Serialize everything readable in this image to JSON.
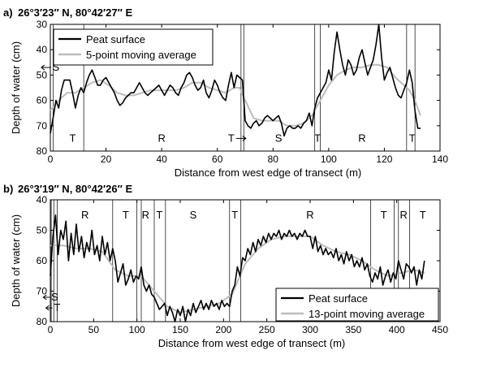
{
  "chart_data": [
    {
      "type": "line",
      "panel_label": "a)",
      "title": "26°3′23″ N,  80°42′27″ E",
      "xlabel": "Distance from west edge of transect (m)",
      "ylabel": "Depth of water (cm)",
      "xlim": [
        0,
        140
      ],
      "ylim": [
        30,
        80
      ],
      "y_inverted": true,
      "xticks": [
        0,
        20,
        40,
        60,
        80,
        100,
        120,
        140
      ],
      "yticks": [
        30,
        40,
        50,
        60,
        70,
        80
      ],
      "legend_position": "top-left",
      "series": [
        {
          "name": "Peat surface",
          "color": "#000000",
          "x": [
            0,
            1,
            2,
            3,
            4,
            5,
            6,
            7,
            8,
            9,
            10,
            11,
            12,
            13,
            14,
            15,
            16,
            17,
            18,
            19,
            20,
            21,
            22,
            23,
            24,
            25,
            26,
            27,
            28,
            29,
            30,
            31,
            32,
            33,
            34,
            35,
            36,
            37,
            38,
            39,
            40,
            41,
            42,
            43,
            44,
            45,
            46,
            47,
            48,
            49,
            50,
            51,
            52,
            53,
            54,
            55,
            56,
            57,
            58,
            59,
            60,
            61,
            62,
            63,
            64,
            65,
            66,
            67,
            68,
            69,
            70,
            71,
            72,
            73,
            74,
            75,
            76,
            77,
            78,
            79,
            80,
            81,
            82,
            83,
            84,
            85,
            86,
            87,
            88,
            89,
            90,
            91,
            92,
            93,
            94,
            95,
            96,
            97,
            98,
            99,
            100,
            101,
            102,
            103,
            104,
            105,
            106,
            107,
            108,
            109,
            110,
            111,
            112,
            113,
            114,
            115,
            116,
            117,
            118,
            119,
            120,
            121,
            122,
            123,
            124,
            125,
            126,
            127,
            128,
            129,
            130,
            131,
            132,
            133
          ],
          "y": [
            73,
            67,
            60,
            63,
            56,
            52,
            52,
            52,
            57,
            63,
            58,
            55,
            57,
            53,
            50,
            48,
            51,
            54,
            54,
            52,
            51,
            53,
            55,
            57,
            60,
            62,
            61,
            59,
            58,
            57,
            57,
            55,
            53,
            55,
            57,
            58,
            57,
            56,
            55,
            54,
            56,
            58,
            56,
            54,
            55,
            57,
            58,
            55,
            53,
            50,
            49,
            51,
            54,
            56,
            55,
            52,
            57,
            59,
            56,
            52,
            54,
            57,
            59,
            60,
            54,
            49,
            55,
            50,
            51,
            52,
            68,
            70,
            71,
            69,
            68,
            70,
            69,
            67,
            66,
            67,
            68,
            67,
            66,
            69,
            74,
            71,
            70,
            71,
            71,
            70,
            71,
            69,
            68,
            65,
            70,
            63,
            59,
            57,
            55,
            53,
            48,
            52,
            41,
            33,
            40,
            46,
            50,
            44,
            46,
            50,
            48,
            43,
            40,
            45,
            50,
            47,
            44,
            38,
            30,
            43,
            52,
            49,
            47,
            51,
            55,
            58,
            59,
            56,
            53,
            48,
            53,
            64,
            71,
            71
          ]
        },
        {
          "name": "5-point moving average",
          "color": "#bcbcbc",
          "x": [
            0,
            3,
            6,
            9,
            12,
            15,
            18,
            21,
            24,
            27,
            30,
            33,
            36,
            39,
            42,
            45,
            48,
            51,
            54,
            57,
            60,
            63,
            66,
            68,
            70,
            73,
            76,
            79,
            82,
            85,
            88,
            91,
            94,
            96,
            98,
            100,
            103,
            106,
            109,
            112,
            115,
            118,
            121,
            124,
            127,
            129,
            131,
            133
          ],
          "y": [
            64,
            60,
            57,
            57,
            55,
            53,
            52,
            54,
            57,
            58,
            58,
            57,
            56,
            56,
            56,
            56,
            55,
            53,
            53,
            55,
            56,
            57,
            55,
            55,
            60,
            67,
            68,
            68,
            68,
            70,
            70,
            69,
            66,
            62,
            58,
            54,
            50,
            48,
            47,
            47,
            46,
            46,
            47,
            51,
            54,
            56,
            60,
            66
          ]
        }
      ],
      "annotations": [
        {
          "text": "S",
          "x": 2,
          "y": 47,
          "arrow": true
        },
        {
          "text": "T",
          "x": 8,
          "y": 75
        },
        {
          "text": "R",
          "x": 40,
          "y": 75
        },
        {
          "text": "T",
          "x": 65,
          "y": 75,
          "arrow": true
        },
        {
          "text": "S",
          "x": 82,
          "y": 75
        },
        {
          "text": "T",
          "x": 96,
          "y": 75
        },
        {
          "text": "R",
          "x": 112,
          "y": 75
        },
        {
          "text": "T",
          "x": 130,
          "y": 75
        }
      ],
      "boundaries": [
        1,
        12,
        68.5,
        69.5,
        95,
        97,
        128,
        131
      ]
    },
    {
      "type": "line",
      "panel_label": "b)",
      "title": "26°3′19″ N,  80°42′26″ E",
      "xlabel": "Distance from west edge of transect (m)",
      "ylabel": "Depth of water (cm)",
      "xlim": [
        0,
        450
      ],
      "ylim": [
        40,
        80
      ],
      "y_inverted": true,
      "xticks": [
        0,
        50,
        100,
        150,
        200,
        250,
        300,
        350,
        400,
        450
      ],
      "yticks": [
        40,
        50,
        60,
        70,
        80
      ],
      "legend_position": "bottom-right",
      "series": [
        {
          "name": "Peat surface",
          "color": "#000000",
          "x": [
            0,
            3,
            6,
            9,
            12,
            15,
            18,
            21,
            24,
            27,
            30,
            33,
            36,
            39,
            42,
            45,
            48,
            51,
            54,
            57,
            60,
            63,
            66,
            69,
            72,
            75,
            78,
            81,
            84,
            87,
            90,
            93,
            96,
            99,
            102,
            105,
            108,
            111,
            114,
            117,
            120,
            123,
            126,
            129,
            132,
            135,
            138,
            141,
            144,
            147,
            150,
            153,
            156,
            159,
            162,
            165,
            168,
            171,
            174,
            177,
            180,
            183,
            186,
            189,
            192,
            195,
            198,
            201,
            204,
            207,
            210,
            213,
            216,
            219,
            222,
            225,
            228,
            231,
            234,
            237,
            240,
            243,
            246,
            249,
            252,
            255,
            258,
            261,
            264,
            267,
            270,
            273,
            276,
            279,
            282,
            285,
            288,
            291,
            294,
            297,
            300,
            303,
            306,
            309,
            312,
            315,
            318,
            321,
            324,
            327,
            330,
            333,
            336,
            339,
            342,
            345,
            348,
            351,
            354,
            357,
            360,
            363,
            366,
            369,
            372,
            375,
            378,
            381,
            384,
            387,
            390,
            393,
            396,
            399,
            402,
            405,
            408,
            411,
            414,
            417,
            420,
            423,
            426,
            429,
            432
          ],
          "y": [
            65,
            52,
            45,
            58,
            50,
            53,
            47,
            60,
            51,
            58,
            48,
            57,
            52,
            59,
            54,
            57,
            50,
            58,
            55,
            60,
            52,
            58,
            54,
            60,
            56,
            60,
            67,
            64,
            61,
            68,
            66,
            63,
            67,
            65,
            66,
            62,
            68,
            70,
            68,
            71,
            72,
            74,
            76,
            75,
            74,
            78,
            75,
            77,
            80,
            76,
            78,
            75,
            80,
            76,
            78,
            74,
            77,
            75,
            73,
            76,
            74,
            76,
            73,
            75,
            74,
            76,
            73,
            75,
            74,
            75,
            70,
            68,
            62,
            65,
            59,
            60,
            56,
            58,
            54,
            57,
            53,
            55,
            52,
            54,
            51,
            53,
            51,
            52,
            50,
            53,
            51,
            52,
            50,
            52,
            51,
            53,
            51,
            52,
            50,
            52,
            52,
            56,
            52,
            57,
            55,
            58,
            56,
            58,
            57,
            59,
            56,
            60,
            58,
            61,
            57,
            60,
            58,
            62,
            60,
            62,
            59,
            63,
            61,
            65,
            67,
            64,
            66,
            62,
            68,
            65,
            63,
            67,
            64,
            66,
            60,
            63,
            66,
            61,
            62,
            64,
            62,
            68,
            63,
            66,
            60
          ]
        },
        {
          "name": "13-point moving average",
          "color": "#bcbcbc",
          "x": [
            0,
            15,
            30,
            45,
            60,
            75,
            90,
            105,
            120,
            135,
            150,
            165,
            180,
            195,
            210,
            225,
            240,
            255,
            270,
            285,
            300,
            315,
            330,
            345,
            360,
            375,
            390,
            405,
            420,
            432
          ],
          "y": [
            55,
            55,
            56,
            56,
            57,
            63,
            65,
            65,
            70,
            75,
            77,
            76,
            75,
            74,
            71,
            61,
            56,
            53,
            52,
            52,
            52,
            55,
            57,
            58,
            60,
            63,
            65,
            64,
            63,
            64
          ]
        }
      ],
      "annotations": [
        {
          "text": "R",
          "x": 40,
          "y": 45
        },
        {
          "text": "T",
          "x": 87,
          "y": 45
        },
        {
          "text": "R",
          "x": 110,
          "y": 45
        },
        {
          "text": "T",
          "x": 126,
          "y": 45
        },
        {
          "text": "S",
          "x": 165,
          "y": 45
        },
        {
          "text": "T",
          "x": 213,
          "y": 45
        },
        {
          "text": "R",
          "x": 300,
          "y": 45
        },
        {
          "text": "T",
          "x": 385,
          "y": 45
        },
        {
          "text": "R",
          "x": 408,
          "y": 45
        },
        {
          "text": "T",
          "x": 430,
          "y": 45
        },
        {
          "text": "S",
          "x": 5,
          "y": 72,
          "arrow": true
        },
        {
          "text": "T",
          "x": 8,
          "y": 75.5,
          "arrow": true
        }
      ],
      "boundaries": [
        1,
        4,
        8,
        72,
        100,
        105,
        120,
        133,
        207,
        220,
        370,
        397,
        402,
        415
      ]
    }
  ]
}
